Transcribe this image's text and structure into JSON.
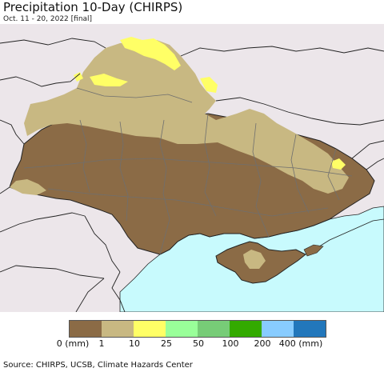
{
  "header": {
    "title": "Precipitation 10-Day (CHIRPS)",
    "subtitle": "Oct. 11 - 20, 2022 [final]"
  },
  "map": {
    "land_color": "#ece6ea",
    "sea_color": "#c8fafd",
    "border_color": "#222222",
    "region_line_color": "#6f6f6f"
  },
  "legend": {
    "unit_label": "(mm)",
    "swatches": [
      {
        "color": "#8b6b46",
        "range": "0-1"
      },
      {
        "color": "#c8b882",
        "range": "1-10"
      },
      {
        "color": "#ffff66",
        "range": "10-25"
      },
      {
        "color": "#99ff99",
        "range": "25-50"
      },
      {
        "color": "#77cc77",
        "range": "50-100"
      },
      {
        "color": "#33aa00",
        "range": "100-200"
      },
      {
        "color": "#88ccff",
        "range": "200-400"
      },
      {
        "color": "#2277bb",
        "range": ">400"
      }
    ],
    "labels": [
      "0",
      "1",
      "10",
      "25",
      "50",
      "100",
      "200",
      "400"
    ],
    "trailing_unit": "(mm)"
  },
  "footer": {
    "source": "Source: CHIRPS, UCSB, Climate Hazards Center"
  }
}
